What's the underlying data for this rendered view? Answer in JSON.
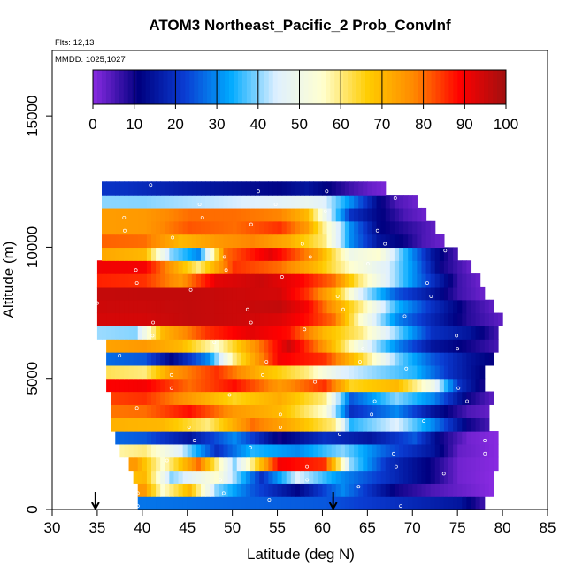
{
  "chart_data": {
    "type": "heatmap",
    "title": "ATOM3 Northeast_Pacific_2 Prob_ConvInf",
    "xlabel": "Latitude (deg N)",
    "ylabel": "Altitude (m)",
    "xlim": [
      30,
      85
    ],
    "ylim": [
      0,
      17500
    ],
    "x_ticks": [
      30,
      35,
      40,
      45,
      50,
      55,
      60,
      65,
      70,
      75,
      80,
      85
    ],
    "y_ticks": [
      0,
      5000,
      10000,
      15000
    ],
    "info_lines": [
      "Flts: 12,13",
      "MMDD: 1025,1027"
    ],
    "colorbar": {
      "min": 0,
      "max": 100,
      "ticks": [
        0,
        10,
        20,
        30,
        40,
        50,
        60,
        70,
        80,
        90,
        100
      ],
      "colors": [
        "#8a2be2",
        "#000080",
        "#0a3cd2",
        "#00aaff",
        "#dff0ff",
        "#ffffd0",
        "#ffcc00",
        "#ff8800",
        "#ff0000",
        "#a01010"
      ]
    },
    "arrows_lat": [
      34.8,
      61.2
    ],
    "bin_height_m": 500,
    "bands": [
      {
        "z": 250,
        "lat": [
          39.5,
          78
        ],
        "stops": [
          [
            0,
            15
          ],
          [
            40,
            28
          ],
          [
            60,
            25
          ],
          [
            75,
            15
          ],
          [
            78,
            5
          ]
        ]
      },
      {
        "z": 750,
        "lat": [
          39.5,
          79
        ],
        "stops": [
          [
            0,
            90
          ],
          [
            40,
            75
          ],
          [
            42,
            55
          ],
          [
            45,
            70
          ],
          [
            48,
            40
          ],
          [
            52,
            25
          ],
          [
            57,
            12
          ],
          [
            62,
            30
          ],
          [
            68,
            10
          ],
          [
            72,
            5
          ],
          [
            79,
            0
          ]
        ]
      },
      {
        "z": 1250,
        "lat": [
          39,
          79
        ],
        "stops": [
          [
            0,
            30
          ],
          [
            40,
            70
          ],
          [
            43,
            40
          ],
          [
            48,
            55
          ],
          [
            53,
            20
          ],
          [
            57,
            45
          ],
          [
            62,
            30
          ],
          [
            67,
            20
          ],
          [
            72,
            10
          ],
          [
            75,
            2
          ],
          [
            79,
            0
          ]
        ]
      },
      {
        "z": 1750,
        "lat": [
          38.5,
          79.5
        ],
        "stops": [
          [
            0,
            60
          ],
          [
            39,
            75
          ],
          [
            42,
            55
          ],
          [
            46,
            80
          ],
          [
            50,
            40
          ],
          [
            55,
            90
          ],
          [
            60,
            85
          ],
          [
            63,
            40
          ],
          [
            67,
            20
          ],
          [
            72,
            10
          ],
          [
            75,
            2
          ],
          [
            79.5,
            0
          ]
        ]
      },
      {
        "z": 2250,
        "lat": [
          37.5,
          79.5
        ],
        "stops": [
          [
            0,
            30
          ],
          [
            40,
            60
          ],
          [
            44,
            45
          ],
          [
            48,
            20
          ],
          [
            52,
            35
          ],
          [
            57,
            30
          ],
          [
            62,
            40
          ],
          [
            67,
            25
          ],
          [
            72,
            15
          ],
          [
            75,
            3
          ],
          [
            79.5,
            0
          ]
        ]
      },
      {
        "z": 2750,
        "lat": [
          37,
          79.5
        ],
        "stops": [
          [
            0,
            45
          ],
          [
            40,
            25
          ],
          [
            45,
            15
          ],
          [
            50,
            30
          ],
          [
            55,
            10
          ],
          [
            60,
            20
          ],
          [
            65,
            15
          ],
          [
            70,
            25
          ],
          [
            73,
            10
          ],
          [
            76,
            2
          ],
          [
            79.5,
            0
          ]
        ]
      },
      {
        "z": 3250,
        "lat": [
          36.5,
          78.5
        ],
        "stops": [
          [
            0,
            78
          ],
          [
            42,
            70
          ],
          [
            47,
            60
          ],
          [
            52,
            80
          ],
          [
            57,
            70
          ],
          [
            61,
            60
          ],
          [
            63,
            35
          ],
          [
            68,
            45
          ],
          [
            72,
            30
          ],
          [
            76,
            10
          ],
          [
            78.5,
            5
          ]
        ]
      },
      {
        "z": 3750,
        "lat": [
          36.5,
          78.5
        ],
        "stops": [
          [
            0,
            72
          ],
          [
            40,
            80
          ],
          [
            45,
            88
          ],
          [
            50,
            75
          ],
          [
            55,
            70
          ],
          [
            60,
            55
          ],
          [
            63,
            20
          ],
          [
            68,
            30
          ],
          [
            72,
            15
          ],
          [
            76,
            5
          ],
          [
            78.5,
            3
          ]
        ]
      },
      {
        "z": 4250,
        "lat": [
          36.5,
          79
        ],
        "stops": [
          [
            0,
            70
          ],
          [
            40,
            85
          ],
          [
            45,
            75
          ],
          [
            50,
            65
          ],
          [
            55,
            72
          ],
          [
            60,
            60
          ],
          [
            63,
            25
          ],
          [
            68,
            40
          ],
          [
            72,
            30
          ],
          [
            76,
            10
          ],
          [
            79,
            3
          ]
        ]
      },
      {
        "z": 4750,
        "lat": [
          36,
          78
        ],
        "stops": [
          [
            0,
            82
          ],
          [
            40,
            90
          ],
          [
            45,
            80
          ],
          [
            50,
            88
          ],
          [
            55,
            75
          ],
          [
            60,
            85
          ],
          [
            63,
            65
          ],
          [
            68,
            70
          ],
          [
            72,
            50
          ],
          [
            75,
            20
          ],
          [
            78,
            8
          ]
        ]
      },
      {
        "z": 5250,
        "lat": [
          36,
          78
        ],
        "stops": [
          [
            0,
            80
          ],
          [
            40,
            60
          ],
          [
            43,
            75
          ],
          [
            48,
            85
          ],
          [
            53,
            70
          ],
          [
            58,
            60
          ],
          [
            62,
            45
          ],
          [
            66,
            40
          ],
          [
            70,
            35
          ],
          [
            74,
            20
          ],
          [
            78,
            10
          ]
        ]
      },
      {
        "z": 5750,
        "lat": [
          36,
          79
        ],
        "stops": [
          [
            0,
            45
          ],
          [
            40,
            25
          ],
          [
            43,
            12
          ],
          [
            47,
            30
          ],
          [
            50,
            60
          ],
          [
            55,
            90
          ],
          [
            60,
            85
          ],
          [
            64,
            65
          ],
          [
            68,
            40
          ],
          [
            72,
            25
          ],
          [
            76,
            15
          ],
          [
            79,
            10
          ]
        ]
      },
      {
        "z": 6250,
        "lat": [
          36,
          79.5
        ],
        "stops": [
          [
            0,
            60
          ],
          [
            40,
            75
          ],
          [
            44,
            70
          ],
          [
            48,
            55
          ],
          [
            52,
            75
          ],
          [
            56,
            95
          ],
          [
            60,
            75
          ],
          [
            64,
            50
          ],
          [
            68,
            30
          ],
          [
            72,
            15
          ],
          [
            76,
            10
          ],
          [
            79.5,
            5
          ]
        ]
      },
      {
        "z": 6750,
        "lat": [
          35,
          79.5
        ],
        "stops": [
          [
            0,
            50
          ],
          [
            39,
            40
          ],
          [
            42,
            70
          ],
          [
            47,
            85
          ],
          [
            52,
            92
          ],
          [
            56,
            88
          ],
          [
            60,
            70
          ],
          [
            64,
            60
          ],
          [
            68,
            40
          ],
          [
            72,
            20
          ],
          [
            76,
            15
          ],
          [
            79.5,
            5
          ]
        ]
      },
      {
        "z": 7250,
        "lat": [
          35,
          80
        ],
        "stops": [
          [
            0,
            92
          ],
          [
            40,
            94
          ],
          [
            45,
            96
          ],
          [
            50,
            95
          ],
          [
            55,
            93
          ],
          [
            58,
            88
          ],
          [
            61,
            80
          ],
          [
            64,
            55
          ],
          [
            68,
            30
          ],
          [
            72,
            18
          ],
          [
            76,
            8
          ],
          [
            80,
            3
          ]
        ]
      },
      {
        "z": 7750,
        "lat": [
          35,
          79
        ],
        "stops": [
          [
            0,
            93
          ],
          [
            40,
            95
          ],
          [
            45,
            96
          ],
          [
            50,
            95
          ],
          [
            55,
            96
          ],
          [
            58,
            90
          ],
          [
            61,
            75
          ],
          [
            64,
            60
          ],
          [
            68,
            35
          ],
          [
            72,
            20
          ],
          [
            76,
            8
          ],
          [
            79,
            3
          ]
        ]
      },
      {
        "z": 8250,
        "lat": [
          35,
          78
        ],
        "stops": [
          [
            0,
            94
          ],
          [
            40,
            96
          ],
          [
            45,
            96
          ],
          [
            50,
            95
          ],
          [
            55,
            94
          ],
          [
            58,
            85
          ],
          [
            61,
            70
          ],
          [
            64,
            45
          ],
          [
            68,
            25
          ],
          [
            72,
            15
          ],
          [
            75,
            6
          ],
          [
            78,
            2
          ]
        ]
      },
      {
        "z": 8750,
        "lat": [
          35,
          77.5
        ],
        "stops": [
          [
            0,
            95
          ],
          [
            40,
            85
          ],
          [
            44,
            75
          ],
          [
            48,
            92
          ],
          [
            53,
            95
          ],
          [
            57,
            90
          ],
          [
            61,
            80
          ],
          [
            64,
            60
          ],
          [
            68,
            40
          ],
          [
            72,
            20
          ],
          [
            75,
            6
          ],
          [
            77.5,
            2
          ]
        ]
      },
      {
        "z": 9250,
        "lat": [
          35,
          76.5
        ],
        "stops": [
          [
            0,
            95
          ],
          [
            40,
            90
          ],
          [
            43,
            75
          ],
          [
            46,
            60
          ],
          [
            50,
            85
          ],
          [
            55,
            80
          ],
          [
            59,
            70
          ],
          [
            63,
            55
          ],
          [
            67,
            45
          ],
          [
            70,
            30
          ],
          [
            73,
            10
          ],
          [
            76.5,
            2
          ]
        ]
      },
      {
        "z": 9750,
        "lat": [
          35.5,
          75
        ],
        "stops": [
          [
            0,
            93
          ],
          [
            40,
            70
          ],
          [
            43,
            40
          ],
          [
            46,
            30
          ],
          [
            49,
            80
          ],
          [
            54,
            92
          ],
          [
            59,
            75
          ],
          [
            63,
            50
          ],
          [
            66,
            55
          ],
          [
            69,
            35
          ],
          [
            72,
            15
          ],
          [
            75,
            4
          ]
        ]
      },
      {
        "z": 10250,
        "lat": [
          35.5,
          73.5
        ],
        "stops": [
          [
            0,
            88
          ],
          [
            40,
            80
          ],
          [
            44,
            70
          ],
          [
            48,
            75
          ],
          [
            52,
            78
          ],
          [
            56,
            72
          ],
          [
            60,
            60
          ],
          [
            63,
            30
          ],
          [
            66,
            15
          ],
          [
            69,
            10
          ],
          [
            71,
            5
          ],
          [
            73.5,
            2
          ]
        ]
      },
      {
        "z": 10750,
        "lat": [
          35.5,
          72.5
        ],
        "stops": [
          [
            0,
            70
          ],
          [
            40,
            75
          ],
          [
            45,
            82
          ],
          [
            50,
            80
          ],
          [
            55,
            85
          ],
          [
            58,
            75
          ],
          [
            61,
            50
          ],
          [
            63,
            30
          ],
          [
            66,
            12
          ],
          [
            69,
            8
          ],
          [
            72.5,
            3
          ]
        ]
      },
      {
        "z": 11250,
        "lat": [
          35.5,
          71.5
        ],
        "stops": [
          [
            0,
            70
          ],
          [
            40,
            75
          ],
          [
            45,
            80
          ],
          [
            50,
            80
          ],
          [
            55,
            78
          ],
          [
            58,
            70
          ],
          [
            61,
            40
          ],
          [
            63,
            20
          ],
          [
            66,
            12
          ],
          [
            69,
            5
          ],
          [
            71.5,
            2
          ]
        ]
      },
      {
        "z": 11750,
        "lat": [
          35.5,
          70.5
        ],
        "stops": [
          [
            0,
            42
          ],
          [
            40,
            40
          ],
          [
            45,
            42
          ],
          [
            50,
            44
          ],
          [
            55,
            46
          ],
          [
            58,
            48
          ],
          [
            60,
            45
          ],
          [
            63,
            30
          ],
          [
            66,
            12
          ],
          [
            68,
            5
          ],
          [
            70.5,
            2
          ]
        ]
      },
      {
        "z": 12250,
        "lat": [
          35.5,
          67
        ],
        "stops": [
          [
            0,
            28
          ],
          [
            38,
            20
          ],
          [
            45,
            16
          ],
          [
            50,
            14
          ],
          [
            55,
            12
          ],
          [
            58,
            15
          ],
          [
            61,
            10
          ],
          [
            63,
            6
          ],
          [
            65,
            3
          ],
          [
            67,
            1
          ]
        ]
      }
    ]
  }
}
